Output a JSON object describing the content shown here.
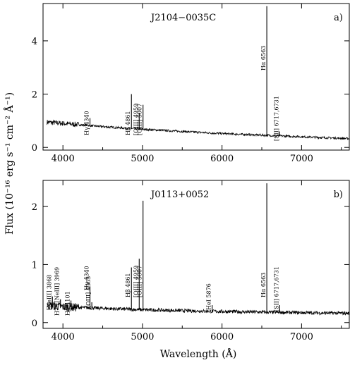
{
  "figure": {
    "ylabel": "Flux (10⁻¹⁶ erg s⁻¹ cm⁻² Å⁻¹)",
    "xlabel": "Wavelength (Å)"
  },
  "chart_data": [
    {
      "type": "line",
      "panel_label": "a)",
      "object": "J2104−0035C",
      "xlabel": "Wavelength (Å)",
      "xlim": [
        3750,
        7600
      ],
      "ylim": [
        -0.1,
        5.4
      ],
      "xticks": [
        4000,
        5000,
        6000,
        7000
      ],
      "yticks": [
        0,
        2,
        4
      ],
      "continuum": {
        "x": [
          3800,
          4000,
          4500,
          5000,
          6000,
          7000,
          7600
        ],
        "y": [
          0.95,
          0.9,
          0.78,
          0.68,
          0.52,
          0.4,
          0.33
        ]
      },
      "lines": [
        {
          "label": "Hγ 4340",
          "wave": 4340,
          "peak": 1.1,
          "boxed": false
        },
        {
          "label": "Hβ 4861",
          "wave": 4861,
          "peak": 2.0,
          "boxed": false
        },
        {
          "label": "[OIII] 4959",
          "wave": 4959,
          "peak": 1.3,
          "boxed": true
        },
        {
          "label": "[OIII] 5007",
          "wave": 5007,
          "peak": 1.6,
          "boxed": true
        },
        {
          "label": "Hα 6563",
          "wave": 6563,
          "peak": 5.3,
          "boxed": false
        },
        {
          "label": "[SII] 6717,6731",
          "wave": 6724,
          "peak": 0.6,
          "boxed": true
        }
      ]
    },
    {
      "type": "line",
      "panel_label": "b)",
      "object": "J0113+0052",
      "xlabel": "Wavelength (Å)",
      "xlim": [
        3750,
        7600
      ],
      "ylim": [
        -0.1,
        2.45
      ],
      "xticks": [
        4000,
        5000,
        6000,
        7000
      ],
      "yticks": [
        0,
        1,
        2
      ],
      "continuum": {
        "x": [
          3800,
          4000,
          5000,
          6000,
          7000,
          7600
        ],
        "y": [
          0.3,
          0.27,
          0.22,
          0.19,
          0.17,
          0.16
        ]
      },
      "lines": [
        {
          "label": "[NeIII] 3868",
          "wave": 3868,
          "peak": 0.45,
          "boxed": true
        },
        {
          "label": "H7+[NeIII] 3969",
          "wave": 3969,
          "peak": 0.4,
          "boxed": false
        },
        {
          "label": "Hδ 4101",
          "wave": 4101,
          "peak": 0.38,
          "boxed": false
        },
        {
          "label": "Hγ 4340",
          "wave": 4340,
          "peak": 0.62,
          "boxed": false
        },
        {
          "label": "[OIII] 4363",
          "wave": 4363,
          "peak": 0.35,
          "boxed": true
        },
        {
          "label": "Hβ 4861",
          "wave": 4861,
          "peak": 0.95,
          "boxed": false
        },
        {
          "label": "[OIII] 4959",
          "wave": 4959,
          "peak": 1.1,
          "boxed": true
        },
        {
          "label": "[OIII] 5007",
          "wave": 5007,
          "peak": 2.1,
          "boxed": true
        },
        {
          "label": "HeI 5876",
          "wave": 5876,
          "peak": 0.3,
          "boxed": false
        },
        {
          "label": "Hα 6563",
          "wave": 6563,
          "peak": 2.4,
          "boxed": false
        },
        {
          "label": "[SII] 6717,6731",
          "wave": 6724,
          "peak": 0.3,
          "boxed": true
        }
      ]
    }
  ]
}
